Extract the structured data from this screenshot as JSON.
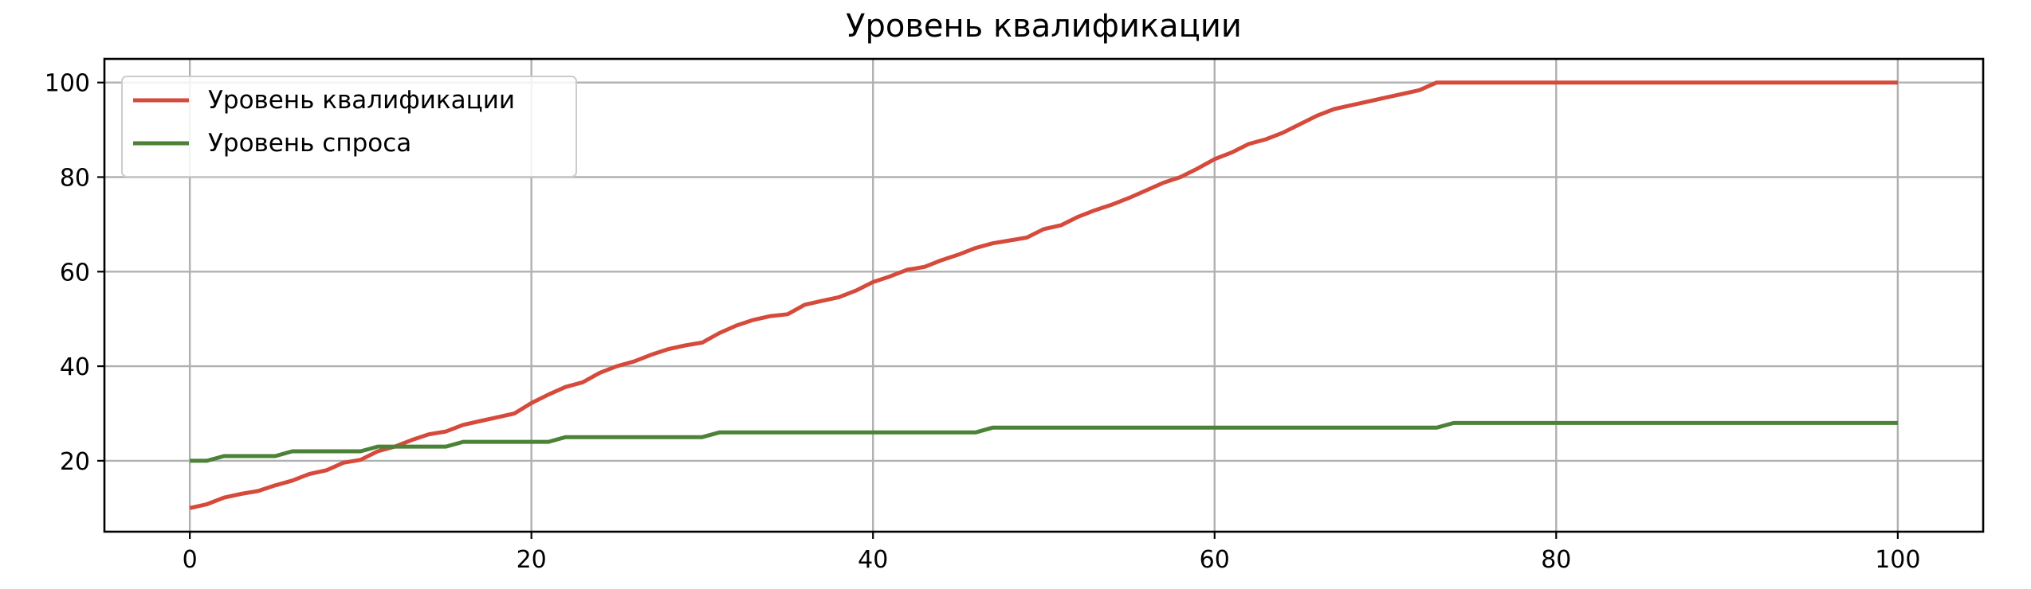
{
  "chart_data": {
    "type": "line",
    "title": "Уровень квалификации",
    "xlabel": "",
    "ylabel": "",
    "xlim": [
      -5,
      105
    ],
    "ylim": [
      5,
      105
    ],
    "x_ticks": [
      0,
      20,
      40,
      60,
      80,
      100
    ],
    "y_ticks": [
      20,
      40,
      60,
      80,
      100
    ],
    "grid": true,
    "legend_position": "top-left",
    "x": [
      0,
      1,
      2,
      3,
      4,
      5,
      6,
      7,
      8,
      9,
      10,
      11,
      12,
      13,
      14,
      15,
      16,
      17,
      18,
      19,
      20,
      21,
      22,
      23,
      24,
      25,
      26,
      27,
      28,
      29,
      30,
      31,
      32,
      33,
      34,
      35,
      36,
      37,
      38,
      39,
      40,
      41,
      42,
      43,
      44,
      45,
      46,
      47,
      48,
      49,
      50,
      51,
      52,
      53,
      54,
      55,
      56,
      57,
      58,
      59,
      60,
      61,
      62,
      63,
      64,
      65,
      66,
      67,
      68,
      69,
      70,
      71,
      72,
      73,
      74,
      75,
      76,
      77,
      78,
      79,
      80,
      81,
      82,
      83,
      84,
      85,
      86,
      87,
      88,
      89,
      90,
      91,
      92,
      93,
      94,
      95,
      96,
      97,
      98,
      99,
      100
    ],
    "series": [
      {
        "name": "Уровень квалификации",
        "color": "#d64a3b",
        "values": [
          10,
          10.8,
          12.2,
          13,
          13.6,
          14.8,
          15.8,
          17.2,
          18,
          19.6,
          20.2,
          22,
          23,
          24.4,
          25.6,
          26.2,
          27.6,
          28.4,
          29.2,
          30,
          32.2,
          34,
          35.6,
          36.6,
          38.6,
          40,
          41,
          42.4,
          43.6,
          44.4,
          45,
          47,
          48.6,
          49.8,
          50.6,
          51,
          53,
          53.8,
          54.6,
          56,
          57.8,
          59,
          60.4,
          61,
          62.4,
          63.6,
          65,
          66,
          66.6,
          67.2,
          69,
          69.8,
          71.6,
          73,
          74.2,
          75.6,
          77.2,
          78.8,
          80,
          81.8,
          83.8,
          85.2,
          87,
          88,
          89.4,
          91.2,
          93,
          94.4,
          95.2,
          96,
          96.8,
          97.6,
          98.4,
          100,
          100,
          100,
          100,
          100,
          100,
          100,
          100,
          100,
          100,
          100,
          100,
          100,
          100,
          100,
          100,
          100,
          100,
          100,
          100,
          100,
          100,
          100,
          100,
          100,
          100,
          100,
          100
        ]
      },
      {
        "name": "Уровень спроса",
        "color": "#4a8236",
        "values": [
          20,
          20,
          21,
          21,
          21,
          21,
          22,
          22,
          22,
          22,
          22,
          23,
          23,
          23,
          23,
          23,
          24,
          24,
          24,
          24,
          24,
          24,
          25,
          25,
          25,
          25,
          25,
          25,
          25,
          25,
          25,
          26,
          26,
          26,
          26,
          26,
          26,
          26,
          26,
          26,
          26,
          26,
          26,
          26,
          26,
          26,
          26,
          27,
          27,
          27,
          27,
          27,
          27,
          27,
          27,
          27,
          27,
          27,
          27,
          27,
          27,
          27,
          27,
          27,
          27,
          27,
          27,
          27,
          27,
          27,
          27,
          27,
          27,
          27,
          28,
          28,
          28,
          28,
          28,
          28,
          28,
          28,
          28,
          28,
          28,
          28,
          28,
          28,
          28,
          28,
          28,
          28,
          28,
          28,
          28,
          28,
          28,
          28,
          28,
          28,
          28
        ]
      }
    ]
  }
}
